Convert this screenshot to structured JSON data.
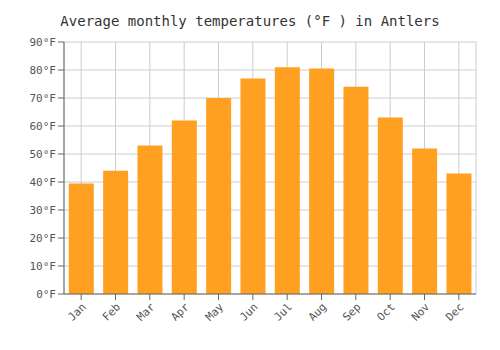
{
  "chart_data": {
    "type": "bar",
    "title": "Average monthly temperatures (°F ) in Antlers",
    "categories": [
      "Jan",
      "Feb",
      "Mar",
      "Apr",
      "May",
      "Jun",
      "Jul",
      "Aug",
      "Sep",
      "Oct",
      "Nov",
      "Dec"
    ],
    "values": [
      39.5,
      44.0,
      53.0,
      62.0,
      70.0,
      77.0,
      81.0,
      80.5,
      74.0,
      63.0,
      52.0,
      43.0
    ],
    "color": "#FFA020",
    "ylim": [
      0,
      90
    ],
    "yticks": [
      {
        "value": 0,
        "label": "0°F"
      },
      {
        "value": 10,
        "label": "10°F"
      },
      {
        "value": 20,
        "label": "20°F"
      },
      {
        "value": 30,
        "label": "30°F"
      },
      {
        "value": 40,
        "label": "40°F"
      },
      {
        "value": 50,
        "label": "50°F"
      },
      {
        "value": 60,
        "label": "60°F"
      },
      {
        "value": 70,
        "label": "70°F"
      },
      {
        "value": 80,
        "label": "80°F"
      },
      {
        "value": 90,
        "label": "90°F"
      }
    ],
    "grid": true
  }
}
